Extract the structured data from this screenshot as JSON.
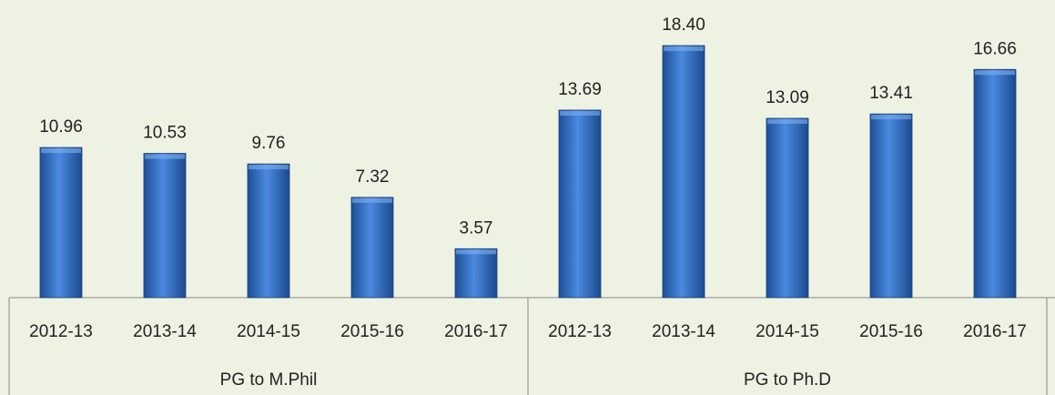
{
  "chart_data": {
    "type": "bar",
    "groups": [
      {
        "name": "PG to M.Phil",
        "categories": [
          "2012-13",
          "2013-14",
          "2014-15",
          "2015-16",
          "2016-17"
        ],
        "values": [
          10.96,
          10.53,
          9.76,
          7.32,
          3.57
        ],
        "value_labels": [
          "10.96",
          "10.53",
          "9.76",
          "7.32",
          "3.57"
        ]
      },
      {
        "name": "PG to Ph.D",
        "categories": [
          "2012-13",
          "2013-14",
          "2014-15",
          "2015-16",
          "2016-17"
        ],
        "values": [
          13.69,
          18.4,
          13.09,
          13.41,
          16.66
        ],
        "value_labels": [
          "13.69",
          "18.40",
          "13.09",
          "13.41",
          "16.66"
        ]
      }
    ],
    "color": "#2f6fc4"
  }
}
